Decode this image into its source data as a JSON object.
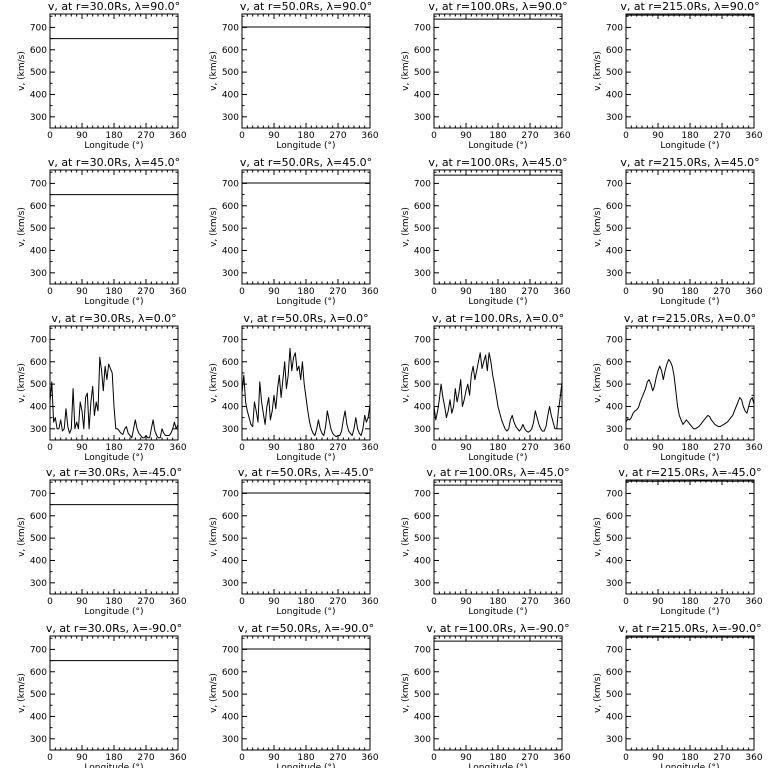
{
  "chart_data": {
    "type": "line",
    "title_template": "v, at r={r}Rs, λ={lat}°",
    "xlabel": "Longitude (°)",
    "ylabel": "v, (km/s)",
    "xlim": [
      0,
      360
    ],
    "ylim": [
      250,
      760
    ],
    "xticks": [
      0,
      90,
      180,
      270,
      360
    ],
    "yticks": [
      300,
      400,
      500,
      600,
      700
    ],
    "grid": false,
    "radii": [
      "30.0",
      "50.0",
      "100.0",
      "215.0"
    ],
    "latitudes": [
      "90.0",
      "45.0",
      "0.0",
      "-45.0",
      "-90.0"
    ],
    "panels": [
      {
        "title": "v, at r=30.0Rs, λ=90.0°",
        "x": [
          0,
          360
        ],
        "y": [
          650,
          650
        ]
      },
      {
        "title": "v, at r=50.0Rs, λ=90.0°",
        "x": [
          0,
          360
        ],
        "y": [
          702,
          702
        ]
      },
      {
        "title": "v, at r=100.0Rs, λ=90.0°",
        "x": [
          0,
          360
        ],
        "y": [
          737,
          737
        ]
      },
      {
        "title": "v, at r=215.0Rs, λ=90.0°",
        "x": [
          0,
          360
        ],
        "y": [
          755,
          755
        ]
      },
      {
        "title": "v, at r=30.0Rs, λ=45.0°",
        "x": [
          0,
          360
        ],
        "y": [
          650,
          650
        ]
      },
      {
        "title": "v, at r=50.0Rs, λ=45.0°",
        "x": [
          0,
          360
        ],
        "y": [
          702,
          702
        ]
      },
      {
        "title": "v, at r=100.0Rs, λ=45.0°",
        "x": [
          0,
          360
        ],
        "y": [
          737,
          737
        ]
      },
      {
        "title": "v, at r=215.0Rs, λ=45.0°",
        "x": [
          0,
          360
        ],
        "y": [
          760,
          760
        ]
      },
      {
        "title": "v, at r=30.0Rs, λ=0.0°",
        "x": [
          0,
          5,
          10,
          15,
          20,
          25,
          30,
          35,
          40,
          45,
          50,
          55,
          60,
          65,
          70,
          75,
          80,
          85,
          90,
          95,
          100,
          105,
          110,
          115,
          120,
          125,
          130,
          135,
          140,
          145,
          150,
          155,
          160,
          165,
          170,
          175,
          180,
          185,
          190,
          195,
          200,
          205,
          210,
          215,
          220,
          225,
          230,
          235,
          240,
          245,
          250,
          255,
          260,
          265,
          270,
          275,
          280,
          285,
          290,
          295,
          300,
          305,
          310,
          315,
          320,
          325,
          330,
          335,
          340,
          345,
          350,
          355,
          360
        ],
        "y": [
          420,
          510,
          330,
          350,
          300,
          300,
          340,
          290,
          300,
          390,
          310,
          280,
          300,
          480,
          300,
          330,
          300,
          420,
          380,
          300,
          440,
          460,
          300,
          420,
          490,
          360,
          420,
          380,
          620,
          560,
          470,
          580,
          520,
          590,
          570,
          550,
          400,
          300,
          300,
          290,
          280,
          275,
          300,
          310,
          280,
          270,
          260,
          300,
          340,
          300,
          280,
          270,
          260,
          260,
          270,
          260,
          260,
          300,
          340,
          290,
          270,
          260,
          260,
          300,
          280,
          270,
          270,
          270,
          280,
          300,
          330,
          300,
          320
        ]
      },
      {
        "title": "v, at r=50.0Rs, λ=0.0°",
        "x": [
          0,
          5,
          10,
          15,
          20,
          25,
          30,
          35,
          40,
          45,
          50,
          55,
          60,
          65,
          70,
          75,
          80,
          85,
          90,
          95,
          100,
          105,
          110,
          115,
          120,
          125,
          130,
          135,
          140,
          145,
          150,
          155,
          160,
          165,
          170,
          175,
          180,
          185,
          190,
          195,
          200,
          205,
          210,
          215,
          220,
          225,
          230,
          235,
          240,
          245,
          250,
          255,
          260,
          265,
          270,
          275,
          280,
          285,
          290,
          295,
          300,
          305,
          310,
          315,
          320,
          325,
          330,
          335,
          340,
          345,
          350,
          355,
          360
        ],
        "y": [
          460,
          540,
          420,
          380,
          350,
          320,
          310,
          420,
          380,
          330,
          510,
          420,
          370,
          320,
          400,
          440,
          340,
          380,
          450,
          390,
          480,
          540,
          440,
          520,
          600,
          480,
          540,
          660,
          560,
          620,
          640,
          560,
          580,
          520,
          600,
          500,
          440,
          380,
          330,
          300,
          280,
          270,
          300,
          340,
          300,
          280,
          270,
          310,
          380,
          340,
          300,
          280,
          270,
          265,
          270,
          270,
          290,
          340,
          380,
          320,
          290,
          280,
          270,
          300,
          350,
          300,
          280,
          270,
          300,
          360,
          330,
          350,
          410
        ]
      },
      {
        "title": "v, at r=100.0Rs, λ=0.0°",
        "x": [
          0,
          5,
          10,
          15,
          20,
          25,
          30,
          35,
          40,
          45,
          50,
          55,
          60,
          65,
          70,
          75,
          80,
          85,
          90,
          95,
          100,
          105,
          110,
          115,
          120,
          125,
          130,
          135,
          140,
          145,
          150,
          155,
          160,
          165,
          170,
          175,
          180,
          185,
          190,
          195,
          200,
          205,
          210,
          215,
          220,
          225,
          230,
          235,
          240,
          245,
          250,
          255,
          260,
          265,
          270,
          275,
          280,
          285,
          290,
          295,
          300,
          305,
          310,
          315,
          320,
          325,
          330,
          335,
          340,
          345,
          350,
          355,
          360
        ],
        "y": [
          400,
          340,
          380,
          430,
          500,
          440,
          400,
          350,
          380,
          430,
          370,
          400,
          480,
          420,
          460,
          520,
          400,
          430,
          470,
          500,
          450,
          540,
          580,
          520,
          560,
          600,
          640,
          570,
          600,
          630,
          560,
          640,
          600,
          540,
          500,
          450,
          400,
          370,
          340,
          320,
          300,
          290,
          300,
          340,
          360,
          330,
          310,
          300,
          290,
          300,
          320,
          300,
          290,
          285,
          290,
          300,
          330,
          380,
          350,
          320,
          300,
          290,
          290,
          310,
          360,
          400,
          360,
          330,
          300,
          300,
          380,
          440,
          510
        ]
      },
      {
        "title": "v, at r=215.0Rs, λ=0.0°",
        "x": [
          0,
          5,
          10,
          15,
          20,
          25,
          30,
          35,
          40,
          45,
          50,
          55,
          60,
          65,
          70,
          75,
          80,
          85,
          90,
          95,
          100,
          105,
          110,
          115,
          120,
          125,
          130,
          135,
          140,
          145,
          150,
          155,
          160,
          165,
          170,
          175,
          180,
          185,
          190,
          195,
          200,
          205,
          210,
          215,
          220,
          225,
          230,
          235,
          240,
          245,
          250,
          255,
          260,
          265,
          270,
          275,
          280,
          285,
          290,
          295,
          300,
          305,
          310,
          315,
          320,
          325,
          330,
          335,
          340,
          345,
          350,
          355,
          360
        ],
        "y": [
          330,
          345,
          340,
          350,
          370,
          380,
          385,
          395,
          420,
          440,
          460,
          480,
          510,
          520,
          500,
          470,
          490,
          530,
          560,
          580,
          560,
          520,
          560,
          590,
          610,
          600,
          580,
          540,
          470,
          400,
          360,
          340,
          320,
          330,
          340,
          330,
          320,
          310,
          300,
          300,
          305,
          310,
          320,
          330,
          340,
          350,
          360,
          355,
          340,
          330,
          320,
          315,
          310,
          310,
          315,
          320,
          325,
          330,
          340,
          350,
          360,
          380,
          400,
          420,
          440,
          430,
          400,
          380,
          370,
          400,
          430,
          440,
          410
        ]
      },
      {
        "title": "v, at r=30.0Rs, λ=-45.0°",
        "x": [
          0,
          360
        ],
        "y": [
          650,
          650
        ]
      },
      {
        "title": "v, at r=50.0Rs, λ=-45.0°",
        "x": [
          0,
          360
        ],
        "y": [
          702,
          702
        ]
      },
      {
        "title": "v, at r=100.0Rs, λ=-45.0°",
        "x": [
          0,
          360
        ],
        "y": [
          737,
          737
        ]
      },
      {
        "title": "v, at r=215.0Rs, λ=-45.0°",
        "x": [
          0,
          30,
          60,
          90,
          120,
          150,
          180,
          210,
          240,
          270,
          300,
          330,
          360
        ],
        "y": [
          755,
          755,
          754,
          754,
          755,
          755,
          755,
          756,
          755,
          755,
          754,
          755,
          755
        ]
      },
      {
        "title": "v, at r=30.0Rs, λ=-90.0°",
        "x": [
          0,
          360
        ],
        "y": [
          650,
          650
        ]
      },
      {
        "title": "v, at r=50.0Rs, λ=-90.0°",
        "x": [
          0,
          360
        ],
        "y": [
          702,
          702
        ]
      },
      {
        "title": "v, at r=100.0Rs, λ=-90.0°",
        "x": [
          0,
          360
        ],
        "y": [
          737,
          737
        ]
      },
      {
        "title": "v, at r=215.0Rs, λ=-90.0°",
        "x": [
          0,
          360
        ],
        "y": [
          755,
          755
        ]
      }
    ]
  }
}
